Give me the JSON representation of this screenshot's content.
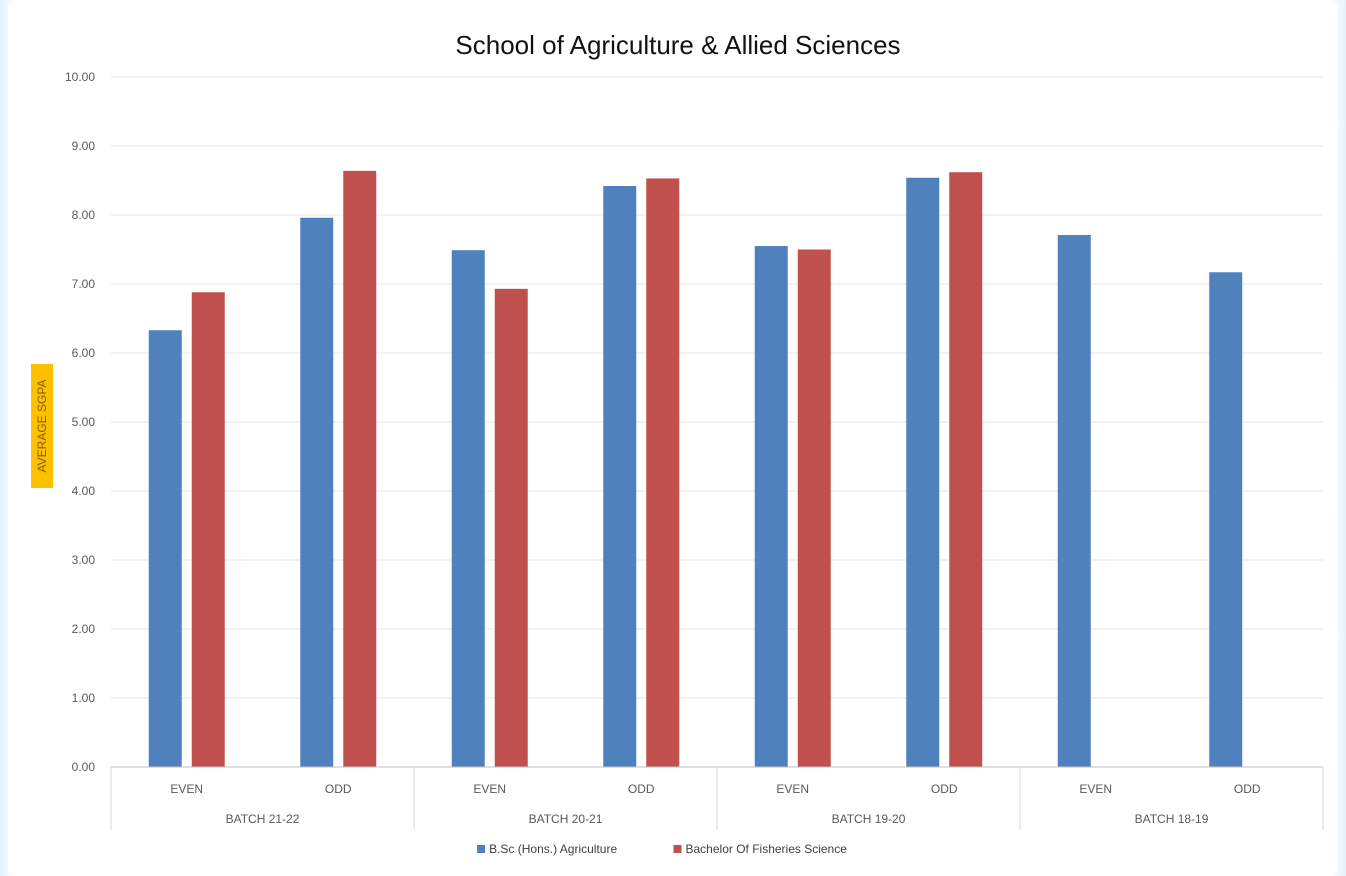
{
  "chart_data": {
    "type": "bar",
    "title": "School of Agriculture & Allied Sciences",
    "ylabel": "AVERAGE SGPA",
    "xlabel": "",
    "ylim": [
      0,
      10
    ],
    "yticks": [
      "0.00",
      "1.00",
      "2.00",
      "3.00",
      "4.00",
      "5.00",
      "6.00",
      "7.00",
      "8.00",
      "9.00",
      "10.00"
    ],
    "groups": [
      "BATCH 21-22",
      "BATCH 20-21",
      "BATCH 19-20",
      "BATCH 18-19"
    ],
    "categories": [
      "EVEN",
      "ODD",
      "EVEN",
      "ODD",
      "EVEN",
      "ODD",
      "EVEN",
      "ODD"
    ],
    "series": [
      {
        "name": "B.Sc (Hons.) Agriculture",
        "color": "#4f81bd",
        "values": [
          6.33,
          7.96,
          7.49,
          8.42,
          7.55,
          8.54,
          7.71,
          7.17
        ]
      },
      {
        "name": "Bachelor Of Fisheries Science",
        "color": "#c0504d",
        "values": [
          6.88,
          8.64,
          6.93,
          8.53,
          7.5,
          8.62,
          null,
          null
        ]
      }
    ],
    "grid": true,
    "legend_position": "bottom",
    "ylabel_highlight": "#ffc000"
  }
}
